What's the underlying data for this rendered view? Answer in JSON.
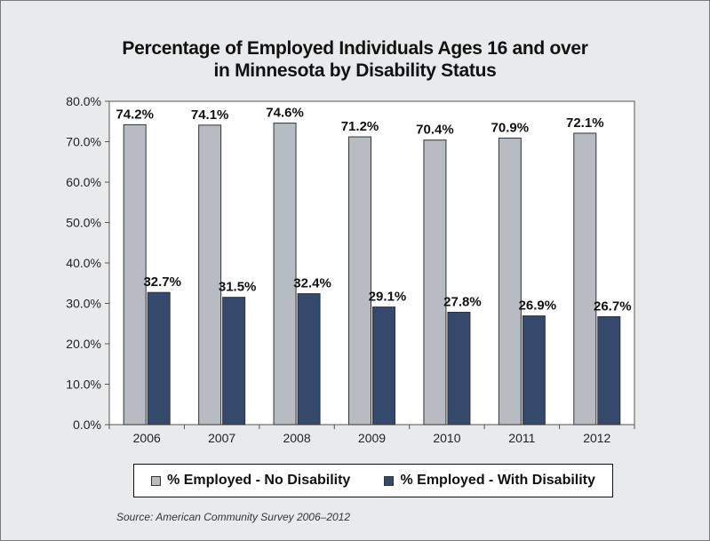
{
  "chart_data": {
    "type": "bar",
    "title_line1": "Percentage of Employed Individuals Ages 16 and over",
    "title_line2": "in Minnesota by Disability Status",
    "categories": [
      "2006",
      "2007",
      "2008",
      "2009",
      "2010",
      "2011",
      "2012"
    ],
    "series": [
      {
        "name": "% Employed - No Disability",
        "values": [
          74.2,
          74.1,
          74.6,
          71.2,
          70.4,
          70.9,
          72.1
        ],
        "labels": [
          "74.2%",
          "74.1%",
          "74.6%",
          "71.2%",
          "70.4%",
          "70.9%",
          "72.1%"
        ],
        "color": "#b7bcc3"
      },
      {
        "name": "% Employed - With Disability",
        "values": [
          32.7,
          31.5,
          32.4,
          29.1,
          27.8,
          26.9,
          26.7
        ],
        "labels": [
          "32.7%",
          "31.5%",
          "32.4%",
          "29.1%",
          "27.8%",
          "26.9%",
          "26.7%"
        ],
        "color": "#34496b"
      }
    ],
    "ylim": [
      0,
      80
    ],
    "yticks": [
      "0.0%",
      "10.0%",
      "20.0%",
      "30.0%",
      "40.0%",
      "50.0%",
      "60.0%",
      "70.0%",
      "80.0%"
    ],
    "grid": false,
    "legend_position": "bottom",
    "source": "Source: American Community Survey 2006–2012"
  }
}
